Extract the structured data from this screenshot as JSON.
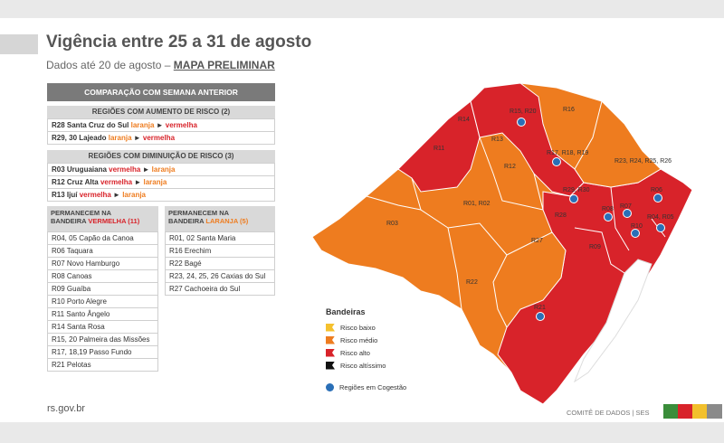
{
  "header": {
    "title": "Vigência entre 25 a 31 de agosto",
    "subtitle_prefix": "Dados até 20 de agosto –",
    "subtitle_link": "MAPA PRELIMINAR"
  },
  "comparison": {
    "title": "COMPARAÇÃO COM SEMANA ANTERIOR",
    "increase_title": "REGIÕES COM AUMENTO DE RISCO (2)",
    "increase": [
      {
        "name": "R28 Santa Cruz do Sul",
        "from": "laranja",
        "to": "vermelha"
      },
      {
        "name": "R29, 30 Lajeado",
        "from": "laranja",
        "to": "vermelha"
      }
    ],
    "decrease_title": "REGIÕES COM DIMINUIÇÃO DE RISCO (3)",
    "decrease": [
      {
        "name": "R03 Uruguaiana",
        "from": "vermelha",
        "to": "laranja"
      },
      {
        "name": "R12 Cruz Alta",
        "from": "vermelha",
        "to": "laranja"
      },
      {
        "name": "R13 Ijuí",
        "from": "vermelha",
        "to": "laranja"
      }
    ]
  },
  "stay_red": {
    "title_line1": "PERMANECEM NA",
    "title_line2_prefix": "BANDEIRA",
    "title_color": "VERMELHA (11)",
    "items": [
      "R04, 05 Capão da Canoa",
      "R06 Taquara",
      "R07 Novo Hamburgo",
      "R08 Canoas",
      "R09 Guaíba",
      "R10 Porto Alegre",
      "R11 Santo Ângelo",
      "R14 Santa Rosa",
      "R15, 20 Palmeira das Missões",
      "R17, 18,19 Passo Fundo",
      "R21 Pelotas"
    ]
  },
  "stay_orange": {
    "title_line1": "PERMANECEM NA",
    "title_line2_prefix": "BANDEIRA",
    "title_color": "LARANJA (5)",
    "items": [
      "R01, 02 Santa Maria",
      "R16 Erechim",
      "R22 Bagé",
      "R23, 24, 25, 26 Caxias do Sul",
      "R27 Cachoeira do Sul"
    ]
  },
  "map": {
    "labels": [
      "R14",
      "R15, R20",
      "R16",
      "R13",
      "R11",
      "R17, R18, R19",
      "R12",
      "R23, R24, R25, R26",
      "R29, R30",
      "R06",
      "R01, R02",
      "R08",
      "R07",
      "R04, R05",
      "R03",
      "R28",
      "R10",
      "R27",
      "R09",
      "R22",
      "R21"
    ]
  },
  "legend": {
    "title": "Bandeiras",
    "items": [
      {
        "label": "Risco baixo",
        "color": "#f5c12e"
      },
      {
        "label": "Risco médio",
        "color": "#ee7c1f"
      },
      {
        "label": "Risco alto",
        "color": "#d8232a"
      },
      {
        "label": "Risco altíssimo",
        "color": "#111111"
      }
    ],
    "cogestao": "Regiões em Cogestão"
  },
  "footer": {
    "site": "rs.gov.br",
    "committee": "COMITÊ DE DADOS |  SES"
  },
  "colors": {
    "orange": "#ee7c1f",
    "red": "#d8232a",
    "green": "#3a8d3a",
    "yellow": "#f2c02c",
    "gray": "#8a8a8a"
  }
}
